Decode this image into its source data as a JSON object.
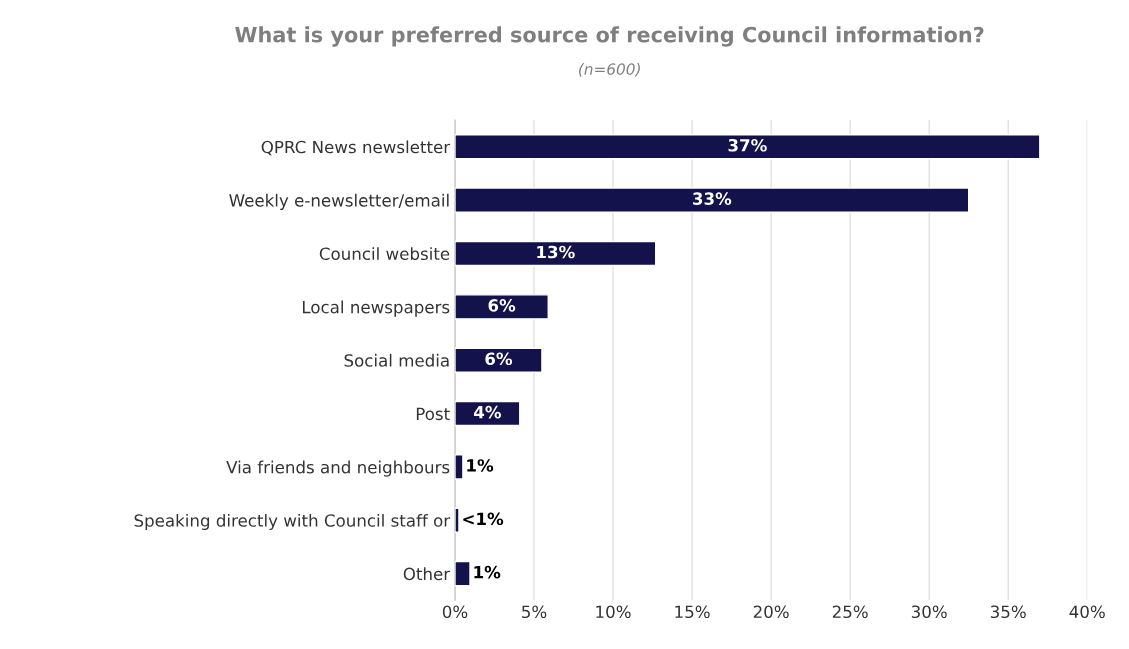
{
  "chart_data": {
    "type": "bar",
    "orientation": "horizontal",
    "title": "What is your preferred source of receiving Council information?",
    "subtitle": "(n=600)",
    "categories": [
      "QPRC News newsletter",
      "Weekly e-newsletter/email",
      "Council website",
      "Local newspapers",
      "Social media",
      "Post",
      "Via friends and neighbours",
      "Speaking directly with Council staff or",
      "Other"
    ],
    "values": [
      37,
      32.5,
      12.7,
      5.9,
      5.5,
      4.1,
      0.5,
      0.25,
      0.95
    ],
    "value_labels": [
      "37%",
      "33%",
      "13%",
      "6%",
      "6%",
      "4%",
      "1%",
      "<1%",
      "1%"
    ],
    "color": "#13124a",
    "xlim": [
      0,
      40
    ],
    "xticks": [
      {
        "value": 0,
        "label": "0%"
      },
      {
        "value": 5,
        "label": "5%"
      },
      {
        "value": 10,
        "label": "10%"
      },
      {
        "value": 15,
        "label": "15%"
      },
      {
        "value": 20,
        "label": "20%"
      },
      {
        "value": 25,
        "label": "25%"
      },
      {
        "value": 30,
        "label": "30%"
      },
      {
        "value": 35,
        "label": "35%"
      },
      {
        "value": 40,
        "label": "40%"
      }
    ],
    "grid": "x",
    "legend": false
  }
}
